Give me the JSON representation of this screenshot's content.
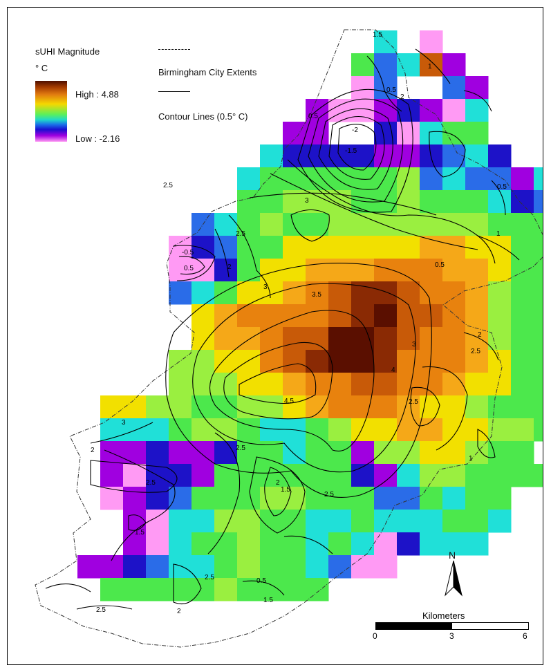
{
  "legend": {
    "title": "sUHI Magnitude",
    "unit": "° C",
    "high": "High : 4.88",
    "low": "Low : -2.16",
    "boundary_label": "Birmingham City Extents",
    "contour_label": "Contour Lines (0.5° C)"
  },
  "north_arrow": {
    "label": "N"
  },
  "scale_bar": {
    "title": "Kilometers",
    "ticks": [
      "0",
      "3",
      "6"
    ]
  },
  "contour_labels": [
    "1.5",
    "1",
    "2",
    "0.5",
    "-2",
    "-1.5",
    "0.5",
    "2.5",
    "0.5",
    "3",
    "1",
    "-0.5",
    "0.5",
    "2",
    "2.5",
    "3",
    "3.5",
    "3",
    "4",
    "4.5",
    "2",
    "2.5",
    "2.5",
    "3",
    "2",
    "1",
    "2.5",
    "2.5",
    "2.5",
    "2",
    "1.5",
    "2.5",
    "0.5",
    "2",
    "2.5",
    "1.5",
    "1.5",
    "0.5"
  ],
  "colors": {
    "max": "#5a0f00",
    "orange": "#e8820e",
    "yellow": "#f2e000",
    "green": "#4ce84c",
    "cyan": "#20e0d8",
    "blue": "#2a6ce8",
    "deep_blue": "#1d12c8",
    "violet": "#a000e0",
    "pink": "#ff9af4"
  }
}
